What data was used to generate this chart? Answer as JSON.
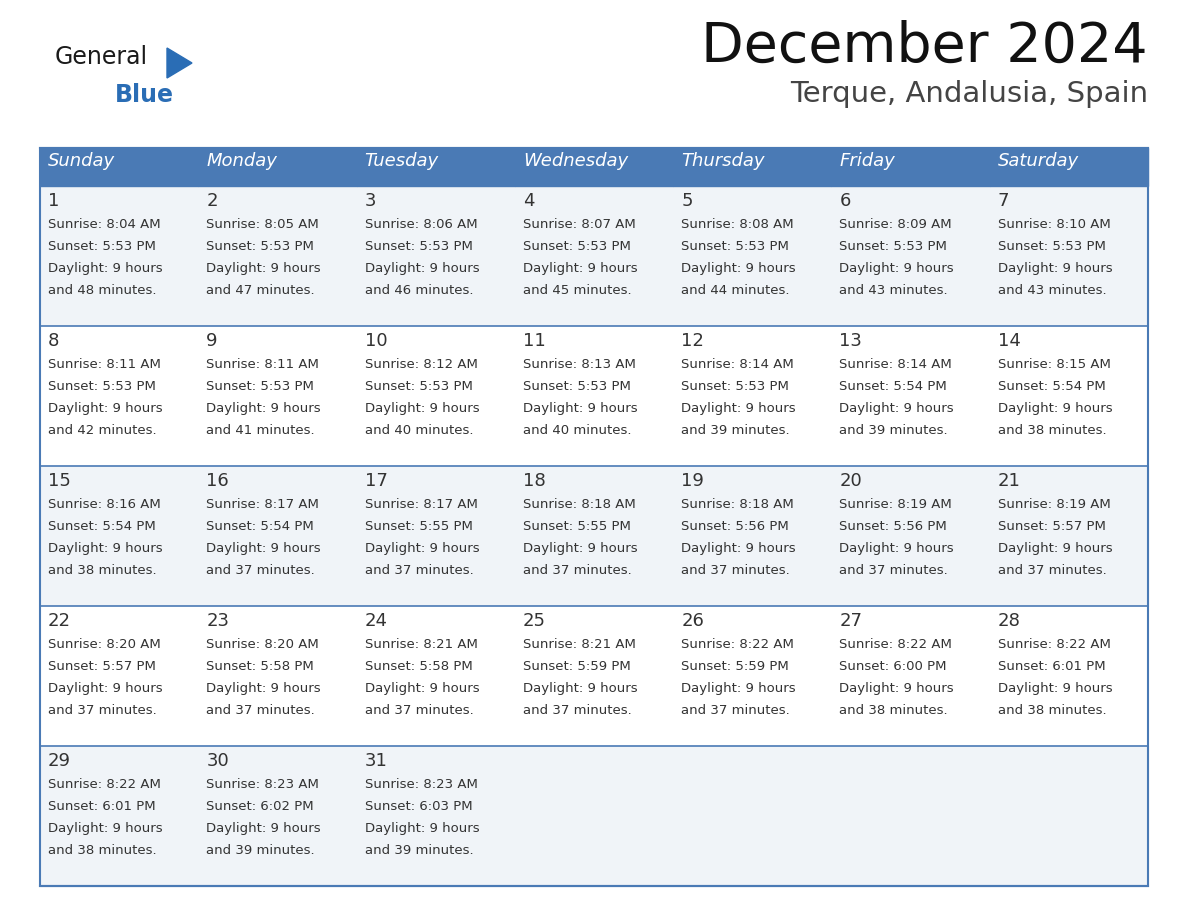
{
  "title": "December 2024",
  "subtitle": "Terque, Andalusia, Spain",
  "header_color": "#4a7ab5",
  "header_text_color": "#FFFFFF",
  "day_names": [
    "Sunday",
    "Monday",
    "Tuesday",
    "Wednesday",
    "Thursday",
    "Friday",
    "Saturday"
  ],
  "row_bg_odd": "#f0f4f8",
  "row_bg_even": "#FFFFFF",
  "border_color": "#4a7ab5",
  "text_color": "#333333",
  "logo_general_color": "#1a1a1a",
  "logo_blue_color": "#2a6db5",
  "logo_triangle_color": "#2a6db5",
  "days": [
    {
      "day": 1,
      "col": 0,
      "row": 0,
      "sunrise": "8:04 AM",
      "sunset": "5:53 PM",
      "daylight_h": "9 hours",
      "daylight_m": "48 minutes."
    },
    {
      "day": 2,
      "col": 1,
      "row": 0,
      "sunrise": "8:05 AM",
      "sunset": "5:53 PM",
      "daylight_h": "9 hours",
      "daylight_m": "47 minutes."
    },
    {
      "day": 3,
      "col": 2,
      "row": 0,
      "sunrise": "8:06 AM",
      "sunset": "5:53 PM",
      "daylight_h": "9 hours",
      "daylight_m": "46 minutes."
    },
    {
      "day": 4,
      "col": 3,
      "row": 0,
      "sunrise": "8:07 AM",
      "sunset": "5:53 PM",
      "daylight_h": "9 hours",
      "daylight_m": "45 minutes."
    },
    {
      "day": 5,
      "col": 4,
      "row": 0,
      "sunrise": "8:08 AM",
      "sunset": "5:53 PM",
      "daylight_h": "9 hours",
      "daylight_m": "44 minutes."
    },
    {
      "day": 6,
      "col": 5,
      "row": 0,
      "sunrise": "8:09 AM",
      "sunset": "5:53 PM",
      "daylight_h": "9 hours",
      "daylight_m": "43 minutes."
    },
    {
      "day": 7,
      "col": 6,
      "row": 0,
      "sunrise": "8:10 AM",
      "sunset": "5:53 PM",
      "daylight_h": "9 hours",
      "daylight_m": "43 minutes."
    },
    {
      "day": 8,
      "col": 0,
      "row": 1,
      "sunrise": "8:11 AM",
      "sunset": "5:53 PM",
      "daylight_h": "9 hours",
      "daylight_m": "42 minutes."
    },
    {
      "day": 9,
      "col": 1,
      "row": 1,
      "sunrise": "8:11 AM",
      "sunset": "5:53 PM",
      "daylight_h": "9 hours",
      "daylight_m": "41 minutes."
    },
    {
      "day": 10,
      "col": 2,
      "row": 1,
      "sunrise": "8:12 AM",
      "sunset": "5:53 PM",
      "daylight_h": "9 hours",
      "daylight_m": "40 minutes."
    },
    {
      "day": 11,
      "col": 3,
      "row": 1,
      "sunrise": "8:13 AM",
      "sunset": "5:53 PM",
      "daylight_h": "9 hours",
      "daylight_m": "40 minutes."
    },
    {
      "day": 12,
      "col": 4,
      "row": 1,
      "sunrise": "8:14 AM",
      "sunset": "5:53 PM",
      "daylight_h": "9 hours",
      "daylight_m": "39 minutes."
    },
    {
      "day": 13,
      "col": 5,
      "row": 1,
      "sunrise": "8:14 AM",
      "sunset": "5:54 PM",
      "daylight_h": "9 hours",
      "daylight_m": "39 minutes."
    },
    {
      "day": 14,
      "col": 6,
      "row": 1,
      "sunrise": "8:15 AM",
      "sunset": "5:54 PM",
      "daylight_h": "9 hours",
      "daylight_m": "38 minutes."
    },
    {
      "day": 15,
      "col": 0,
      "row": 2,
      "sunrise": "8:16 AM",
      "sunset": "5:54 PM",
      "daylight_h": "9 hours",
      "daylight_m": "38 minutes."
    },
    {
      "day": 16,
      "col": 1,
      "row": 2,
      "sunrise": "8:17 AM",
      "sunset": "5:54 PM",
      "daylight_h": "9 hours",
      "daylight_m": "37 minutes."
    },
    {
      "day": 17,
      "col": 2,
      "row": 2,
      "sunrise": "8:17 AM",
      "sunset": "5:55 PM",
      "daylight_h": "9 hours",
      "daylight_m": "37 minutes."
    },
    {
      "day": 18,
      "col": 3,
      "row": 2,
      "sunrise": "8:18 AM",
      "sunset": "5:55 PM",
      "daylight_h": "9 hours",
      "daylight_m": "37 minutes."
    },
    {
      "day": 19,
      "col": 4,
      "row": 2,
      "sunrise": "8:18 AM",
      "sunset": "5:56 PM",
      "daylight_h": "9 hours",
      "daylight_m": "37 minutes."
    },
    {
      "day": 20,
      "col": 5,
      "row": 2,
      "sunrise": "8:19 AM",
      "sunset": "5:56 PM",
      "daylight_h": "9 hours",
      "daylight_m": "37 minutes."
    },
    {
      "day": 21,
      "col": 6,
      "row": 2,
      "sunrise": "8:19 AM",
      "sunset": "5:57 PM",
      "daylight_h": "9 hours",
      "daylight_m": "37 minutes."
    },
    {
      "day": 22,
      "col": 0,
      "row": 3,
      "sunrise": "8:20 AM",
      "sunset": "5:57 PM",
      "daylight_h": "9 hours",
      "daylight_m": "37 minutes."
    },
    {
      "day": 23,
      "col": 1,
      "row": 3,
      "sunrise": "8:20 AM",
      "sunset": "5:58 PM",
      "daylight_h": "9 hours",
      "daylight_m": "37 minutes."
    },
    {
      "day": 24,
      "col": 2,
      "row": 3,
      "sunrise": "8:21 AM",
      "sunset": "5:58 PM",
      "daylight_h": "9 hours",
      "daylight_m": "37 minutes."
    },
    {
      "day": 25,
      "col": 3,
      "row": 3,
      "sunrise": "8:21 AM",
      "sunset": "5:59 PM",
      "daylight_h": "9 hours",
      "daylight_m": "37 minutes."
    },
    {
      "day": 26,
      "col": 4,
      "row": 3,
      "sunrise": "8:22 AM",
      "sunset": "5:59 PM",
      "daylight_h": "9 hours",
      "daylight_m": "37 minutes."
    },
    {
      "day": 27,
      "col": 5,
      "row": 3,
      "sunrise": "8:22 AM",
      "sunset": "6:00 PM",
      "daylight_h": "9 hours",
      "daylight_m": "38 minutes."
    },
    {
      "day": 28,
      "col": 6,
      "row": 3,
      "sunrise": "8:22 AM",
      "sunset": "6:01 PM",
      "daylight_h": "9 hours",
      "daylight_m": "38 minutes."
    },
    {
      "day": 29,
      "col": 0,
      "row": 4,
      "sunrise": "8:22 AM",
      "sunset": "6:01 PM",
      "daylight_h": "9 hours",
      "daylight_m": "38 minutes."
    },
    {
      "day": 30,
      "col": 1,
      "row": 4,
      "sunrise": "8:23 AM",
      "sunset": "6:02 PM",
      "daylight_h": "9 hours",
      "daylight_m": "39 minutes."
    },
    {
      "day": 31,
      "col": 2,
      "row": 4,
      "sunrise": "8:23 AM",
      "sunset": "6:03 PM",
      "daylight_h": "9 hours",
      "daylight_m": "39 minutes."
    }
  ]
}
